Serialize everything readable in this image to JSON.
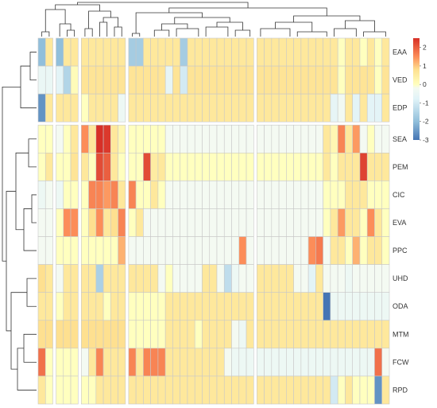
{
  "chart_data": {
    "type": "heatmap",
    "rows": [
      "EAA",
      "VED",
      "EDP",
      "SEA",
      "PEM",
      "CIC",
      "EVA",
      "PPC",
      "UHD",
      "ODA",
      "MTM",
      "FCW",
      "RPD"
    ],
    "n_columns": 46,
    "column_groups": [
      2,
      5,
      11,
      28
    ],
    "row_groups": [
      3
    ],
    "color_scale": {
      "min": -3,
      "max": 2.5,
      "stops": [
        {
          "value": -3.0,
          "color": "#4575b4"
        },
        {
          "value": -2.0,
          "color": "#91bfdb"
        },
        {
          "value": -0.8,
          "color": "#e0f3f8"
        },
        {
          "value": -0.2,
          "color": "#f4faf2"
        },
        {
          "value": 0.0,
          "color": "#ffffbf"
        },
        {
          "value": 0.8,
          "color": "#fee090"
        },
        {
          "value": 1.5,
          "color": "#fc8d59"
        },
        {
          "value": 2.5,
          "color": "#d73027"
        }
      ],
      "ticks": [
        2,
        1,
        0,
        -1,
        -2,
        -3
      ]
    },
    "values": [
      [
        -2.0,
        0.6,
        -2.0,
        0.6,
        0.6,
        0.6,
        0.6,
        0.6,
        0.6,
        0.6,
        0.6,
        -1.7,
        -1.7,
        0.6,
        0.6,
        0.6,
        0.6,
        0.6,
        -1.7,
        0.6,
        0.6,
        0.6,
        0.6,
        0.6,
        0.6,
        0.6,
        0.6,
        0.6,
        0.6,
        0.6,
        0.6,
        0.6,
        0.6,
        0.6,
        0.6,
        0.6,
        0.6,
        0.6,
        0.6,
        0.0,
        0.6,
        0.6,
        0.0,
        0.6,
        0.0,
        0.6
      ],
      [
        -0.5,
        -0.5,
        -0.7,
        -1.5,
        0.1,
        0.7,
        0.7,
        0.7,
        0.7,
        0.7,
        0.7,
        0.7,
        0.7,
        0.7,
        0.7,
        0.7,
        -0.6,
        0.7,
        -1.0,
        0.7,
        0.7,
        0.7,
        0.7,
        0.7,
        0.7,
        0.7,
        0.7,
        0.7,
        0.7,
        0.7,
        0.7,
        0.7,
        0.7,
        0.7,
        0.7,
        0.7,
        0.7,
        0.7,
        0.7,
        0.0,
        0.7,
        0.7,
        0.7,
        0.7,
        0.0,
        0.7
      ],
      [
        -2.6,
        0.6,
        0.6,
        0.6,
        0.6,
        0.0,
        0.6,
        0.6,
        0.6,
        0.6,
        -0.4,
        0.6,
        0.6,
        0.6,
        0.6,
        0.6,
        0.6,
        0.6,
        0.6,
        0.6,
        0.6,
        0.6,
        0.6,
        0.6,
        0.6,
        0.6,
        0.6,
        0.6,
        0.6,
        0.6,
        0.6,
        0.6,
        0.6,
        0.6,
        0.6,
        0.6,
        0.6,
        0.6,
        -0.6,
        -0.3,
        0.6,
        -0.7,
        0.6,
        -0.7,
        -0.7,
        0.6
      ],
      [
        0.0,
        0.0,
        -0.2,
        0.0,
        0.6,
        1.5,
        0.6,
        2.5,
        2.4,
        0.6,
        0.2,
        0.0,
        0.0,
        0.0,
        0.0,
        0.0,
        -0.2,
        -0.2,
        -0.2,
        -0.2,
        -0.2,
        -0.2,
        -0.2,
        -0.2,
        -0.2,
        -0.2,
        -0.2,
        -0.2,
        -0.2,
        -0.2,
        -0.2,
        -0.2,
        -0.2,
        -0.2,
        -0.2,
        -0.2,
        -0.2,
        0.6,
        0.2,
        1.6,
        0.6,
        1.4,
        -0.2,
        0.0,
        -0.2,
        -0.2
      ],
      [
        0.0,
        0.6,
        0.0,
        0.0,
        0.7,
        0.6,
        0.0,
        2.2,
        2.0,
        0.6,
        0.0,
        0.0,
        0.0,
        2.2,
        0.5,
        0.6,
        0.0,
        0.0,
        0.0,
        0.0,
        0.0,
        0.0,
        0.0,
        0.0,
        0.0,
        0.0,
        0.0,
        0.0,
        0.0,
        0.0,
        0.0,
        0.0,
        0.0,
        0.0,
        0.0,
        0.0,
        0.0,
        0.6,
        0.0,
        0.6,
        0.6,
        0.6,
        2.3,
        0.6,
        0.6,
        0.6
      ],
      [
        -0.4,
        -0.2,
        -0.4,
        0.0,
        0.0,
        0.0,
        1.6,
        1.6,
        1.4,
        1.6,
        0.6,
        1.6,
        0.0,
        0.0,
        0.6,
        0.0,
        -0.2,
        -0.2,
        -0.2,
        -0.2,
        -0.2,
        -0.2,
        -0.2,
        -0.2,
        -0.2,
        -0.2,
        -0.2,
        -0.2,
        -0.2,
        -0.2,
        -0.2,
        -0.2,
        -0.2,
        -0.2,
        -0.2,
        -0.2,
        -0.2,
        0.0,
        0.0,
        0.0,
        0.6,
        0.6,
        0.6,
        0.0,
        0.0,
        0.0
      ],
      [
        -0.2,
        -0.2,
        0.0,
        1.5,
        1.5,
        0.0,
        0.8,
        1.5,
        0.6,
        0.8,
        1.6,
        0.0,
        0.6,
        -0.2,
        -0.2,
        -0.2,
        -0.2,
        -0.2,
        -0.2,
        -0.2,
        -0.2,
        -0.2,
        -0.2,
        -0.2,
        -0.2,
        -0.2,
        -0.2,
        -0.2,
        -0.2,
        -0.2,
        -0.2,
        -0.2,
        -0.2,
        -0.2,
        -0.2,
        -0.2,
        -0.2,
        0.0,
        0.6,
        1.4,
        0.6,
        0.6,
        0.0,
        1.5,
        0.6,
        0.0
      ],
      [
        -0.2,
        -0.2,
        0.0,
        0.0,
        0.0,
        0.0,
        0.0,
        0.0,
        0.0,
        0.0,
        1.2,
        -0.2,
        -0.2,
        -0.2,
        -0.2,
        -0.2,
        -0.2,
        -0.2,
        -0.2,
        -0.2,
        -0.2,
        -0.2,
        -0.2,
        -0.2,
        -0.2,
        -0.2,
        1.5,
        -0.2,
        -0.2,
        -0.2,
        -0.2,
        -0.2,
        -0.2,
        -0.2,
        -0.2,
        1.5,
        1.7,
        -0.2,
        0.6,
        0.6,
        0.0,
        1.2,
        0.0,
        0.6,
        0.6,
        0.0
      ],
      [
        0.8,
        0.6,
        -0.2,
        0.6,
        0.6,
        0.6,
        0.6,
        -1.6,
        0.6,
        0.6,
        0.6,
        0.6,
        0.6,
        0.6,
        0.6,
        -0.2,
        0.0,
        -0.2,
        -0.2,
        -0.2,
        -0.2,
        0.6,
        0.6,
        -0.2,
        -1.3,
        -0.4,
        -0.2,
        -0.2,
        0.6,
        0.6,
        0.6,
        0.6,
        0.6,
        -0.2,
        -0.2,
        -0.7,
        0.6,
        -0.2,
        -0.2,
        -0.2,
        -0.4,
        -0.2,
        -0.2,
        -0.2,
        -0.2,
        -0.2
      ],
      [
        0.6,
        0.6,
        0.0,
        0.6,
        0.6,
        0.6,
        0.6,
        0.6,
        0.0,
        0.6,
        0.6,
        0.0,
        0.0,
        0.0,
        0.0,
        0.0,
        0.6,
        0.6,
        0.6,
        0.6,
        0.6,
        0.6,
        0.6,
        0.6,
        0.6,
        0.6,
        0.6,
        0.6,
        0.6,
        0.6,
        0.6,
        0.6,
        0.6,
        0.6,
        0.6,
        0.6,
        0.6,
        -3.0,
        -0.4,
        -0.4,
        -0.4,
        -0.4,
        -0.4,
        -0.4,
        -0.4,
        -0.4
      ],
      [
        0.8,
        0.8,
        0.8,
        0.8,
        0.8,
        0.8,
        0.8,
        0.8,
        0.8,
        0.8,
        0.8,
        0.0,
        0.0,
        0.0,
        0.0,
        0.0,
        0.6,
        0.6,
        0.6,
        0.6,
        0.0,
        0.6,
        0.6,
        0.6,
        0.6,
        -0.2,
        -0.4,
        0.6,
        0.6,
        0.6,
        0.6,
        0.6,
        0.6,
        0.6,
        0.6,
        0.6,
        0.6,
        0.6,
        0.6,
        0.6,
        0.6,
        0.6,
        0.6,
        0.6,
        0.6,
        0.6
      ],
      [
        1.8,
        0.0,
        0.0,
        0.0,
        0.0,
        -0.2,
        0.6,
        1.6,
        0.6,
        0.6,
        0.6,
        1.6,
        0.6,
        1.6,
        1.6,
        1.6,
        0.6,
        0.6,
        0.6,
        0.6,
        0.6,
        0.6,
        0.6,
        0.6,
        -0.2,
        -0.4,
        -0.4,
        -0.4,
        -0.4,
        -0.4,
        -0.4,
        -0.4,
        -0.4,
        -0.4,
        -0.4,
        -0.4,
        -0.4,
        -0.4,
        -0.4,
        -0.4,
        -0.4,
        -0.4,
        -0.4,
        -0.4,
        1.8,
        -0.2
      ],
      [
        0.6,
        0.0,
        0.0,
        0.0,
        0.0,
        0.0,
        0.0,
        0.6,
        0.6,
        0.6,
        0.6,
        0.6,
        0.6,
        0.6,
        0.6,
        0.6,
        0.6,
        0.6,
        0.6,
        0.6,
        0.6,
        0.6,
        0.6,
        0.6,
        0.6,
        0.6,
        0.6,
        0.6,
        0.6,
        0.6,
        0.6,
        0.6,
        0.6,
        0.6,
        0.6,
        0.6,
        0.6,
        0.6,
        -1.0,
        0.0,
        0.6,
        0.0,
        0.0,
        0.0,
        -2.6,
        0.6
      ]
    ],
    "row_dendrogram": true,
    "column_dendrogram": true,
    "legend_placement": "right"
  }
}
